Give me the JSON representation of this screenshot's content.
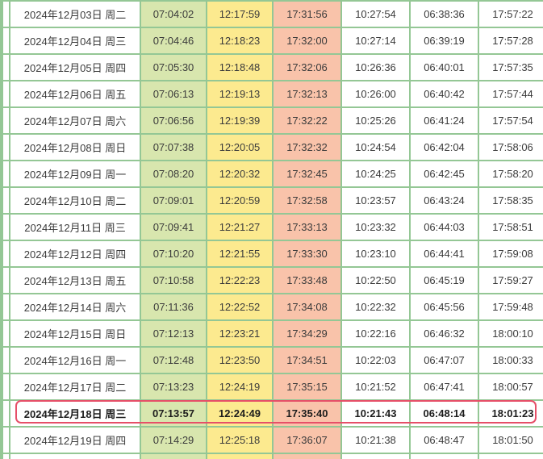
{
  "colors": {
    "table_border_green": "#94c795",
    "sunrise_cell_green": "#d8e6ae",
    "noon_cell_yellow": "#fcea8f",
    "sunset_cell_pink": "#f9c3aa",
    "highlight_border_red": "#e64f68"
  },
  "table": {
    "selected_row_index": 15,
    "rows": [
      {
        "date": "2024年12月03日 周二",
        "times": [
          "07:04:02",
          "12:17:59",
          "17:31:56",
          "10:27:54",
          "06:38:36",
          "17:57:22"
        ],
        "highlighted": false
      },
      {
        "date": "2024年12月04日 周三",
        "times": [
          "07:04:46",
          "12:18:23",
          "17:32:00",
          "10:27:14",
          "06:39:19",
          "17:57:28"
        ],
        "highlighted": false
      },
      {
        "date": "2024年12月05日 周四",
        "times": [
          "07:05:30",
          "12:18:48",
          "17:32:06",
          "10:26:36",
          "06:40:01",
          "17:57:35"
        ],
        "highlighted": false
      },
      {
        "date": "2024年12月06日 周五",
        "times": [
          "07:06:13",
          "12:19:13",
          "17:32:13",
          "10:26:00",
          "06:40:42",
          "17:57:44"
        ],
        "highlighted": false
      },
      {
        "date": "2024年12月07日 周六",
        "times": [
          "07:06:56",
          "12:19:39",
          "17:32:22",
          "10:25:26",
          "06:41:24",
          "17:57:54"
        ],
        "highlighted": false
      },
      {
        "date": "2024年12月08日 周日",
        "times": [
          "07:07:38",
          "12:20:05",
          "17:32:32",
          "10:24:54",
          "06:42:04",
          "17:58:06"
        ],
        "highlighted": false
      },
      {
        "date": "2024年12月09日 周一",
        "times": [
          "07:08:20",
          "12:20:32",
          "17:32:45",
          "10:24:25",
          "06:42:45",
          "17:58:20"
        ],
        "highlighted": false
      },
      {
        "date": "2024年12月10日 周二",
        "times": [
          "07:09:01",
          "12:20:59",
          "17:32:58",
          "10:23:57",
          "06:43:24",
          "17:58:35"
        ],
        "highlighted": false
      },
      {
        "date": "2024年12月11日 周三",
        "times": [
          "07:09:41",
          "12:21:27",
          "17:33:13",
          "10:23:32",
          "06:44:03",
          "17:58:51"
        ],
        "highlighted": false
      },
      {
        "date": "2024年12月12日 周四",
        "times": [
          "07:10:20",
          "12:21:55",
          "17:33:30",
          "10:23:10",
          "06:44:41",
          "17:59:08"
        ],
        "highlighted": false
      },
      {
        "date": "2024年12月13日 周五",
        "times": [
          "07:10:58",
          "12:22:23",
          "17:33:48",
          "10:22:50",
          "06:45:19",
          "17:59:27"
        ],
        "highlighted": false
      },
      {
        "date": "2024年12月14日 周六",
        "times": [
          "07:11:36",
          "12:22:52",
          "17:34:08",
          "10:22:32",
          "06:45:56",
          "17:59:48"
        ],
        "highlighted": false
      },
      {
        "date": "2024年12月15日 周日",
        "times": [
          "07:12:13",
          "12:23:21",
          "17:34:29",
          "10:22:16",
          "06:46:32",
          "18:00:10"
        ],
        "highlighted": false
      },
      {
        "date": "2024年12月16日 周一",
        "times": [
          "07:12:48",
          "12:23:50",
          "17:34:51",
          "10:22:03",
          "06:47:07",
          "18:00:33"
        ],
        "highlighted": false
      },
      {
        "date": "2024年12月17日 周二",
        "times": [
          "07:13:23",
          "12:24:19",
          "17:35:15",
          "10:21:52",
          "06:47:41",
          "18:00:57"
        ],
        "highlighted": false
      },
      {
        "date": "2024年12月18日 周三",
        "times": [
          "07:13:57",
          "12:24:49",
          "17:35:40",
          "10:21:43",
          "06:48:14",
          "18:01:23"
        ],
        "highlighted": true
      },
      {
        "date": "2024年12月19日 周四",
        "times": [
          "07:14:29",
          "12:25:18",
          "17:36:07",
          "10:21:38",
          "06:48:47",
          "18:01:50"
        ],
        "highlighted": false
      },
      {
        "date": "",
        "times": [
          "",
          "",
          "",
          "",
          "",
          ""
        ],
        "highlighted": false,
        "partial": true
      }
    ]
  }
}
